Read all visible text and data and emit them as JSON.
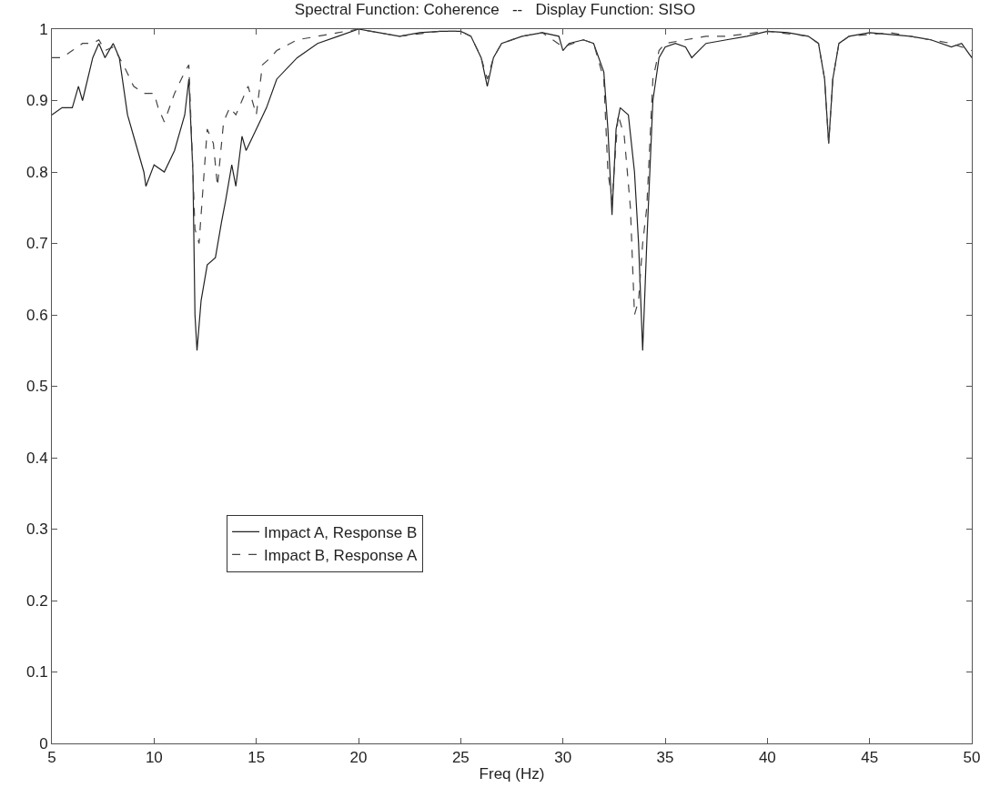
{
  "chart_data": {
    "type": "line",
    "title": "Spectral Function: Coherence   --   Display Function: SISO",
    "xlabel": "Freq (Hz)",
    "xlim": [
      5,
      50
    ],
    "xticks": [
      5,
      10,
      15,
      20,
      25,
      30,
      35,
      40,
      45,
      50
    ],
    "ylim": [
      0,
      1
    ],
    "yticks": [
      0,
      0.1,
      0.2,
      0.3,
      0.4,
      0.5,
      0.6,
      0.7,
      0.8,
      0.9,
      1
    ],
    "legend": "bottom left",
    "marker": "none",
    "series": [
      {
        "name": "Impact A, Response B",
        "color": "#222222",
        "line_style": "solid",
        "x": [
          5,
          5.5,
          6,
          6.3,
          6.5,
          7,
          7.3,
          7.6,
          8,
          8.3,
          8.7,
          9,
          9.5,
          9.6,
          10,
          10.5,
          11,
          11.5,
          11.7,
          11.9,
          12,
          12.1,
          12.3,
          12.6,
          13,
          13.3,
          13.5,
          13.8,
          14,
          14.3,
          14.5,
          15,
          15.5,
          16,
          17,
          18,
          19,
          20,
          21,
          22,
          23,
          24,
          25,
          25.5,
          26,
          26.3,
          26.6,
          27,
          28,
          29,
          29.8,
          30,
          30.3,
          31,
          31.5,
          32,
          32.2,
          32.4,
          32.6,
          32.8,
          33.2,
          33.5,
          33.7,
          33.9,
          34.1,
          34.4,
          34.7,
          35,
          35.5,
          36,
          36.3,
          37,
          38,
          39,
          40,
          41,
          42,
          42.5,
          42.8,
          43,
          43.2,
          43.5,
          44,
          45,
          47,
          48,
          49,
          49.5,
          50
        ],
        "values": [
          0.88,
          0.89,
          0.89,
          0.92,
          0.9,
          0.96,
          0.98,
          0.96,
          0.98,
          0.96,
          0.88,
          0.85,
          0.8,
          0.78,
          0.81,
          0.8,
          0.83,
          0.88,
          0.93,
          0.8,
          0.6,
          0.55,
          0.62,
          0.67,
          0.68,
          0.73,
          0.76,
          0.81,
          0.78,
          0.85,
          0.83,
          0.86,
          0.89,
          0.93,
          0.96,
          0.98,
          0.99,
          1.0,
          0.995,
          0.99,
          0.995,
          0.997,
          0.997,
          0.99,
          0.96,
          0.92,
          0.96,
          0.98,
          0.99,
          0.995,
          0.99,
          0.97,
          0.98,
          0.985,
          0.98,
          0.94,
          0.86,
          0.74,
          0.86,
          0.89,
          0.88,
          0.8,
          0.7,
          0.55,
          0.7,
          0.9,
          0.96,
          0.975,
          0.98,
          0.975,
          0.96,
          0.98,
          0.985,
          0.99,
          0.997,
          0.995,
          0.99,
          0.98,
          0.93,
          0.84,
          0.93,
          0.98,
          0.99,
          0.995,
          0.99,
          0.985,
          0.975,
          0.98,
          0.96
        ]
      },
      {
        "name": "Impact B, Response A",
        "color": "#444444",
        "line_style": "dashed",
        "x": [
          5,
          5.5,
          6,
          6.5,
          7,
          7.3,
          7.6,
          8,
          8.5,
          9,
          9.5,
          10,
          10.2,
          10.5,
          11,
          11.5,
          11.7,
          11.9,
          12,
          12.2,
          12.4,
          12.6,
          12.9,
          13.1,
          13.4,
          13.7,
          14,
          14.3,
          14.6,
          15,
          15.3,
          15.7,
          16,
          17,
          18,
          19,
          20,
          22,
          24,
          25,
          25.5,
          26,
          26.3,
          26.6,
          27,
          28,
          29,
          30,
          30.5,
          31,
          31.5,
          32,
          32.2,
          32.4,
          32.7,
          33,
          33.3,
          33.5,
          33.7,
          33.9,
          34.1,
          34.4,
          34.7,
          35,
          36,
          37,
          38,
          40,
          42,
          42.5,
          42.8,
          43,
          43.2,
          43.5,
          44,
          46,
          48,
          49,
          50
        ],
        "values": [
          0.96,
          0.96,
          0.97,
          0.98,
          0.98,
          0.985,
          0.97,
          0.975,
          0.95,
          0.92,
          0.91,
          0.91,
          0.89,
          0.87,
          0.91,
          0.94,
          0.95,
          0.8,
          0.72,
          0.7,
          0.78,
          0.86,
          0.84,
          0.78,
          0.87,
          0.89,
          0.88,
          0.9,
          0.92,
          0.88,
          0.95,
          0.96,
          0.97,
          0.985,
          0.99,
          0.995,
          1.0,
          0.99,
          0.997,
          0.997,
          0.99,
          0.96,
          0.93,
          0.96,
          0.98,
          0.99,
          0.995,
          0.975,
          0.98,
          0.985,
          0.98,
          0.93,
          0.8,
          0.76,
          0.88,
          0.85,
          0.75,
          0.6,
          0.62,
          0.7,
          0.75,
          0.93,
          0.97,
          0.98,
          0.985,
          0.99,
          0.99,
          0.997,
          0.99,
          0.98,
          0.93,
          0.84,
          0.93,
          0.98,
          0.99,
          0.995,
          0.985,
          0.98,
          0.97
        ]
      }
    ]
  }
}
